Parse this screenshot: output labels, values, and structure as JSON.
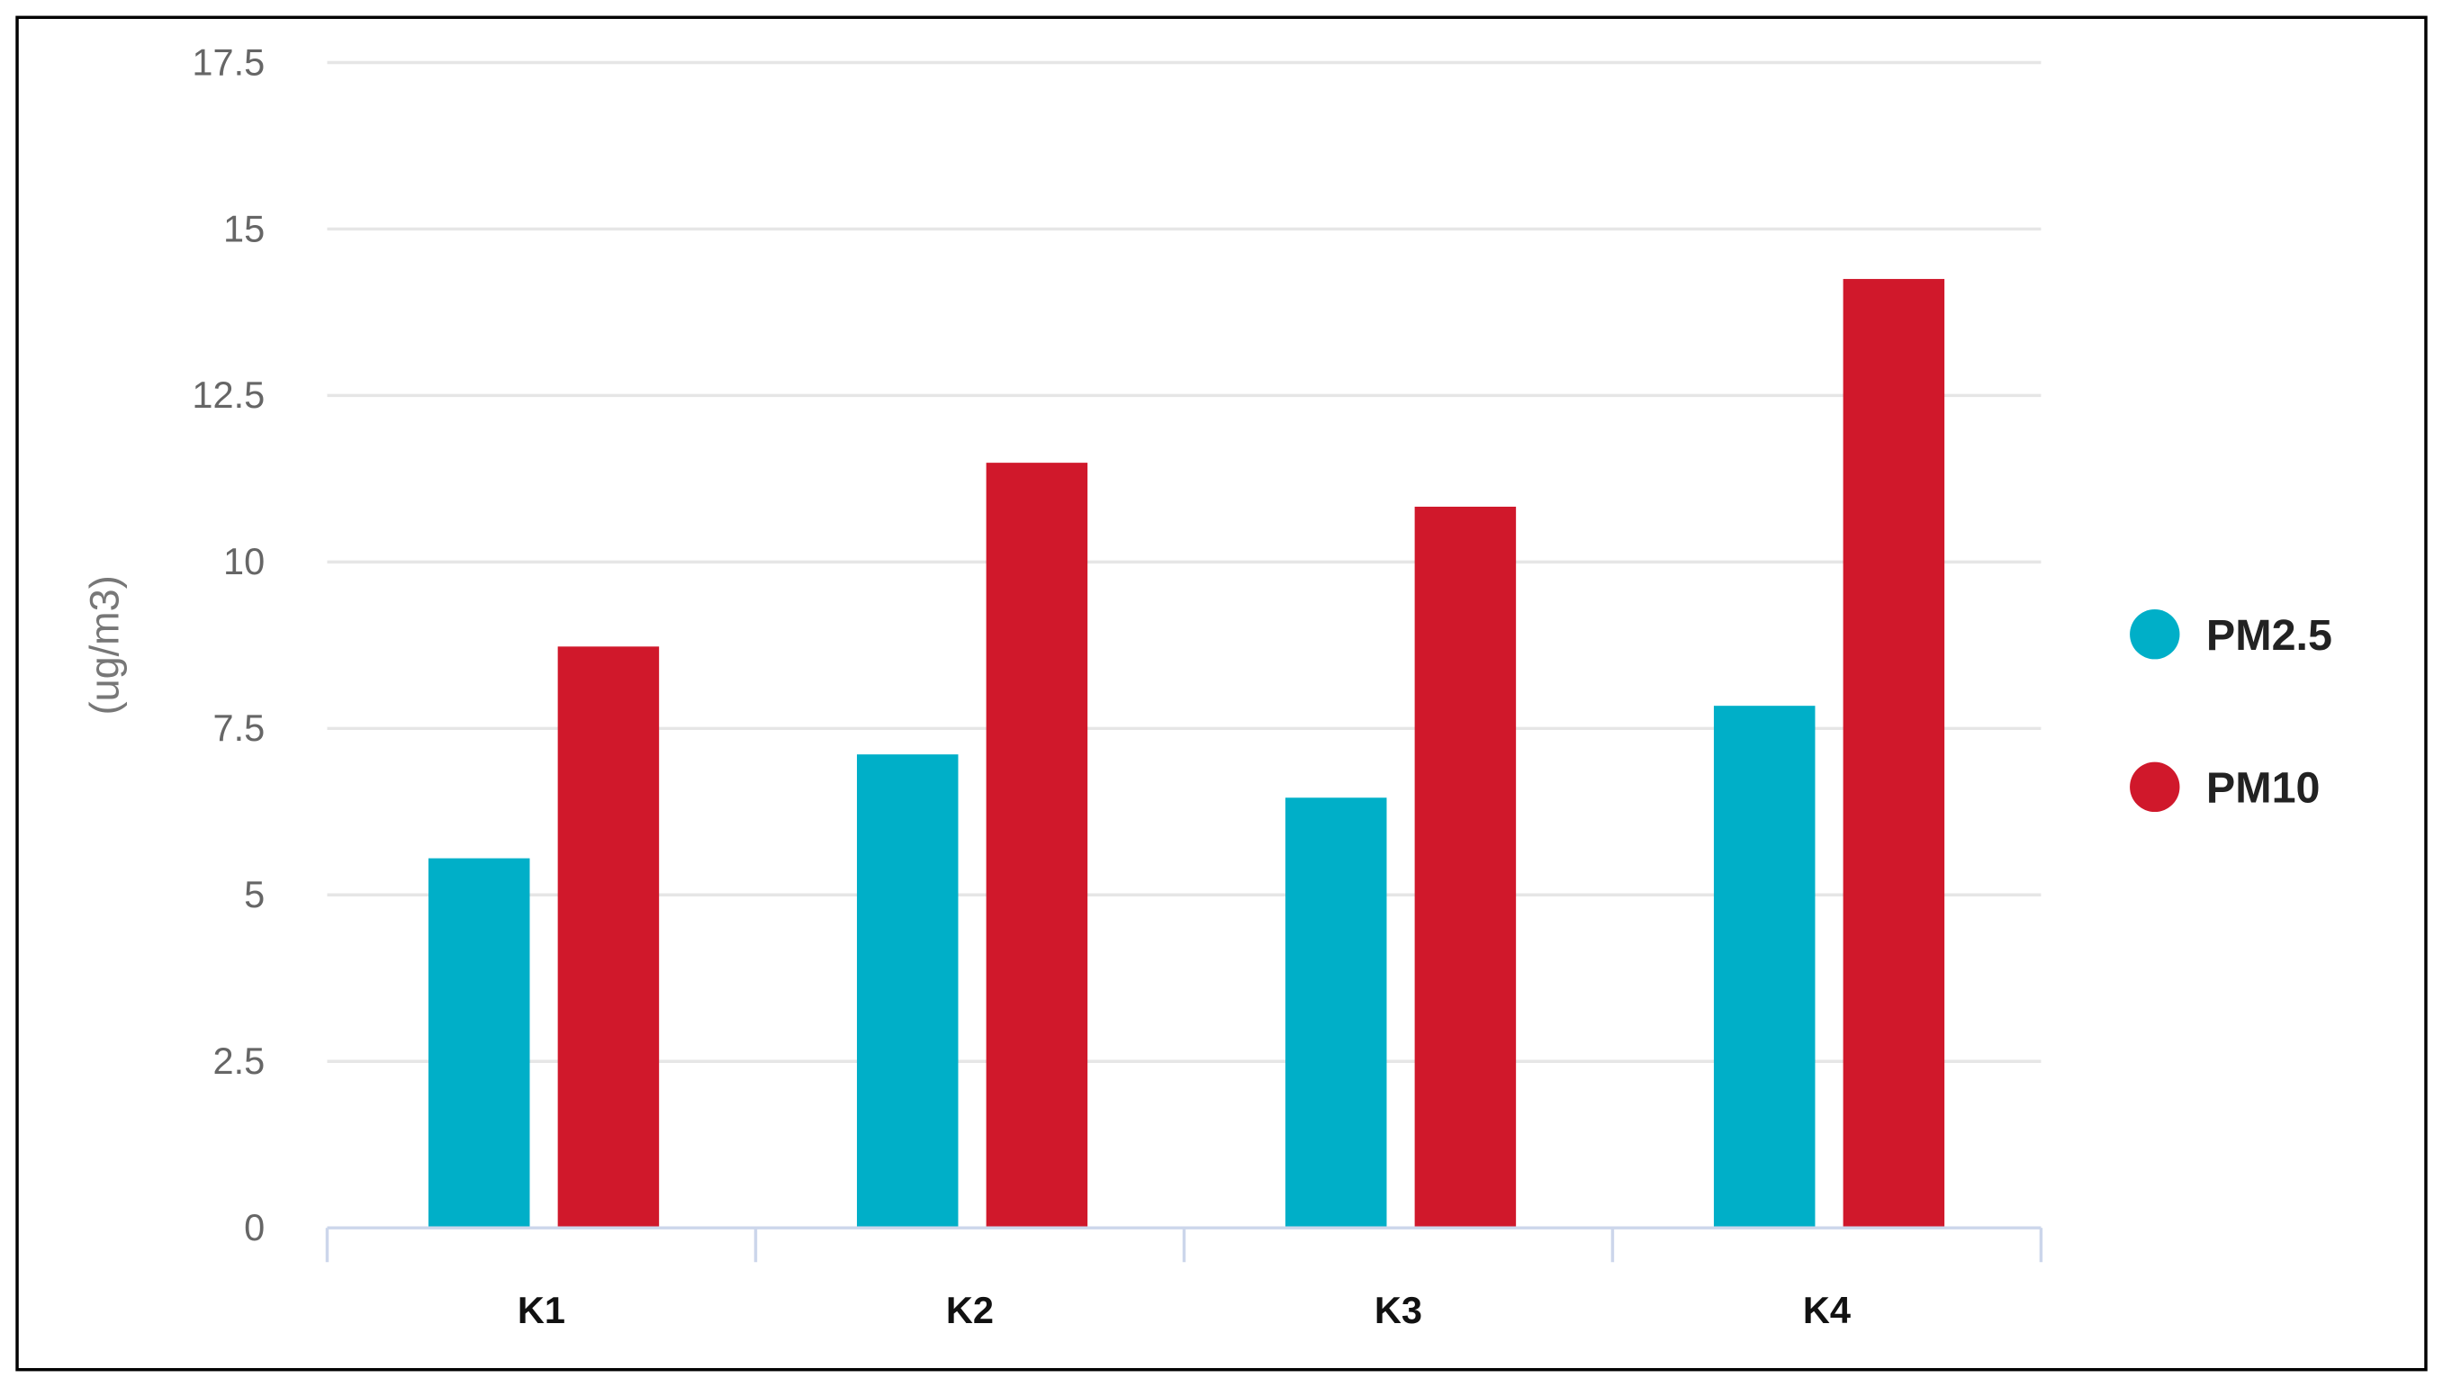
{
  "chart_data": {
    "type": "bar",
    "title": "",
    "xlabel": "",
    "ylabel": "(ug/m3)",
    "ylim": [
      0,
      17.5
    ],
    "yticks": [
      "0",
      "2.5",
      "5",
      "7.5",
      "10",
      "12.5",
      "15",
      "17.5"
    ],
    "categories": [
      "K1",
      "K2",
      "K3",
      "K4"
    ],
    "series": [
      {
        "name": "PM2.5",
        "color": "#00afc8",
        "values": [
          5.55,
          7.11,
          6.46,
          7.84
        ]
      },
      {
        "name": "PM10",
        "color": "#d0182b",
        "values": [
          8.73,
          11.49,
          10.83,
          14.25
        ]
      }
    ],
    "grid": true,
    "legend_position": "right"
  }
}
